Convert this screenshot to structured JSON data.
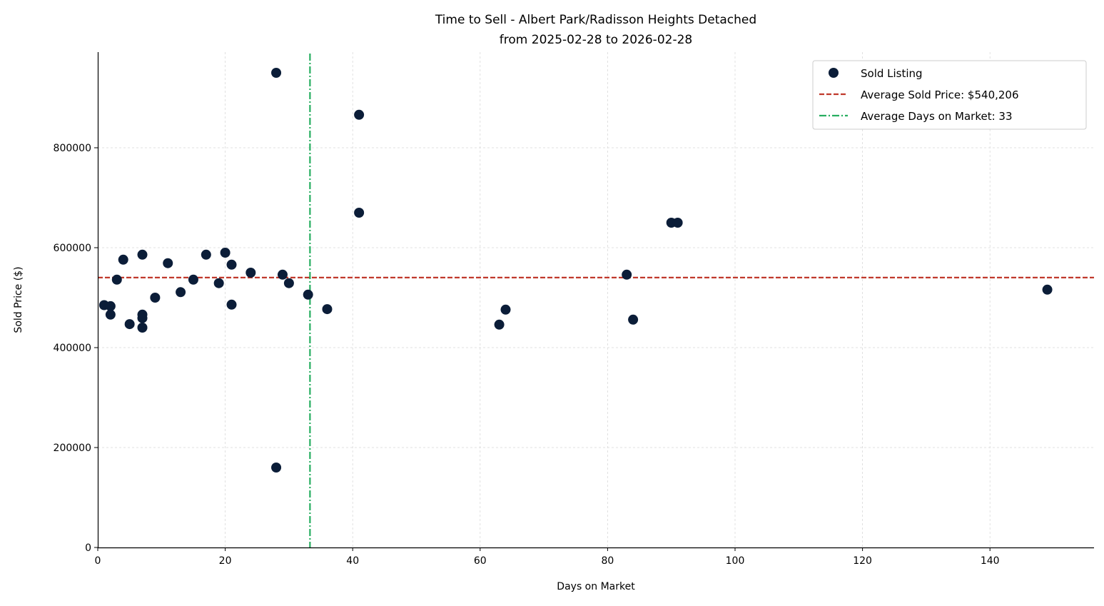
{
  "chart_data": {
    "type": "scatter",
    "title": "Time to Sell - Albert Park/Radisson Heights Detached",
    "subtitle": "from 2025-02-28 to 2026-02-28",
    "xlabel": "Days on Market",
    "ylabel": "Sold Price ($)",
    "xlim": [
      0,
      156
    ],
    "ylim": [
      0,
      990000
    ],
    "xticks": [
      0,
      20,
      40,
      60,
      80,
      100,
      120,
      140
    ],
    "yticks": [
      0,
      200000,
      400000,
      600000,
      800000
    ],
    "grid": true,
    "legend_position": "top-right",
    "colors": {
      "points": "#0b1d38",
      "avg_price": "#c0392b",
      "avg_days": "#27ae60"
    },
    "series": [
      {
        "name": "Sold Listing",
        "points": [
          [
            1,
            485000
          ],
          [
            2,
            483000
          ],
          [
            2,
            466000
          ],
          [
            3,
            536000
          ],
          [
            4,
            576000
          ],
          [
            5,
            447000
          ],
          [
            7,
            586000
          ],
          [
            7,
            466000
          ],
          [
            7,
            459000
          ],
          [
            7,
            440000
          ],
          [
            9,
            500000
          ],
          [
            11,
            569000
          ],
          [
            13,
            511000
          ],
          [
            15,
            536000
          ],
          [
            17,
            586000
          ],
          [
            19,
            529000
          ],
          [
            20,
            590000
          ],
          [
            21,
            566000
          ],
          [
            21,
            486000
          ],
          [
            24,
            550000
          ],
          [
            28,
            950000
          ],
          [
            28,
            160000
          ],
          [
            29,
            546000
          ],
          [
            30,
            529000
          ],
          [
            33,
            506000
          ],
          [
            36,
            477000
          ],
          [
            41,
            866000
          ],
          [
            41,
            670000
          ],
          [
            63,
            446000
          ],
          [
            64,
            476000
          ],
          [
            83,
            546000
          ],
          [
            84,
            456000
          ],
          [
            90,
            650000
          ],
          [
            91,
            650000
          ],
          [
            149,
            516000
          ]
        ]
      }
    ],
    "reference_lines": [
      {
        "name": "Average Sold Price: $540,206",
        "orientation": "horizontal",
        "value": 540206,
        "style": "dashed"
      },
      {
        "name": "Average Days on Market: 33",
        "orientation": "vertical",
        "value": 33.3,
        "style": "dashdot"
      }
    ]
  }
}
